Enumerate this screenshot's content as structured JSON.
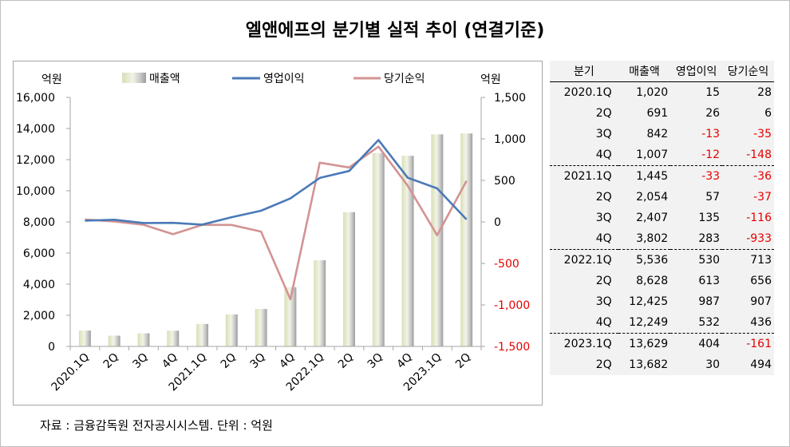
{
  "title": "엘앤에프의 분기별 실적 추이 (연결기준)",
  "footer": "자료 : 금융감독원 전자공시시스템. 단위 : 억원",
  "colors": {
    "revenue": "#e3e8cc",
    "operating": "#4a7ab8",
    "net": "#d39393",
    "negative": "#e60000"
  },
  "chart_data": {
    "type": "bar+line",
    "left_unit": "억원",
    "right_unit": "억원",
    "left_ylim": [
      0,
      16000
    ],
    "left_ticks": [
      "0",
      "2,000",
      "4,000",
      "6,000",
      "8,000",
      "10,000",
      "12,000",
      "14,000",
      "16,000"
    ],
    "right_ylim": [
      -1500,
      1500
    ],
    "right_ticks": [
      "-1,500",
      "-1,000",
      "-500",
      "0",
      "500",
      "1,000",
      "1,500"
    ],
    "categories": [
      "2020.1Q",
      "2Q",
      "3Q",
      "4Q",
      "2021.1Q",
      "2Q",
      "3Q",
      "4Q",
      "2022.1Q",
      "2Q",
      "3Q",
      "4Q",
      "2023.1Q",
      "2Q"
    ],
    "legend": [
      "매출액",
      "영업이익",
      "당기순익"
    ],
    "series": [
      {
        "name": "매출액",
        "type": "bar",
        "axis": "left",
        "values": [
          1020,
          691,
          842,
          1007,
          1445,
          2054,
          2407,
          3802,
          5536,
          8628,
          12425,
          12249,
          13629,
          13682
        ]
      },
      {
        "name": "영업이익",
        "type": "line",
        "axis": "right",
        "values": [
          15,
          26,
          -13,
          -12,
          -33,
          57,
          135,
          283,
          530,
          613,
          987,
          532,
          404,
          30
        ]
      },
      {
        "name": "당기순익",
        "type": "line",
        "axis": "right",
        "values": [
          28,
          6,
          -35,
          -148,
          -36,
          -37,
          -116,
          -933,
          713,
          656,
          907,
          436,
          -161,
          494
        ]
      }
    ]
  },
  "table": {
    "headers": [
      "분기",
      "매출액",
      "영업이익",
      "당기순익"
    ],
    "rows": [
      {
        "q": "2020.1Q",
        "rev": "1,020",
        "op": "15",
        "net": "28"
      },
      {
        "q": "2Q",
        "rev": "691",
        "op": "26",
        "net": "6"
      },
      {
        "q": "3Q",
        "rev": "842",
        "op": "-13",
        "net": "-35"
      },
      {
        "q": "4Q",
        "rev": "1,007",
        "op": "-12",
        "net": "-148"
      },
      {
        "q": "2021.1Q",
        "rev": "1,445",
        "op": "-33",
        "net": "-36"
      },
      {
        "q": "2Q",
        "rev": "2,054",
        "op": "57",
        "net": "-37"
      },
      {
        "q": "3Q",
        "rev": "2,407",
        "op": "135",
        "net": "-116"
      },
      {
        "q": "4Q",
        "rev": "3,802",
        "op": "283",
        "net": "-933"
      },
      {
        "q": "2022.1Q",
        "rev": "5,536",
        "op": "530",
        "net": "713"
      },
      {
        "q": "2Q",
        "rev": "8,628",
        "op": "613",
        "net": "656"
      },
      {
        "q": "3Q",
        "rev": "12,425",
        "op": "987",
        "net": "907"
      },
      {
        "q": "4Q",
        "rev": "12,249",
        "op": "532",
        "net": "436"
      },
      {
        "q": "2023.1Q",
        "rev": "13,629",
        "op": "404",
        "net": "-161"
      },
      {
        "q": "2Q",
        "rev": "13,682",
        "op": "30",
        "net": "494"
      }
    ]
  }
}
